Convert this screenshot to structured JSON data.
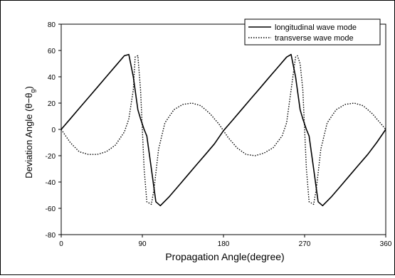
{
  "chart_data": {
    "type": "line",
    "xlabel": "Propagation Angle(degree)",
    "ylabel": "Deviation Angle (θ−θ",
    "ylabel_sub": "g",
    "ylabel_close": ")",
    "xlim": [
      0,
      360
    ],
    "ylim": [
      -80,
      80
    ],
    "xticks": [
      0,
      90,
      180,
      270,
      360
    ],
    "yticks": [
      80,
      60,
      40,
      20,
      0,
      -20,
      -40,
      -60,
      -80
    ],
    "grid": false,
    "legend_position": "top-right",
    "series": [
      {
        "name": "longitudinal wave mode",
        "style": "solid",
        "x": [
          0,
          10,
          20,
          30,
          40,
          50,
          60,
          70,
          75,
          80,
          85,
          88,
          90,
          92,
          95,
          100,
          105,
          110,
          120,
          130,
          140,
          150,
          160,
          170,
          180,
          190,
          200,
          210,
          220,
          230,
          240,
          250,
          255,
          260,
          265,
          268,
          270,
          272,
          275,
          280,
          285,
          290,
          300,
          310,
          320,
          330,
          340,
          350,
          360
        ],
        "y": [
          0,
          8,
          16,
          24,
          32,
          40,
          48,
          56,
          57,
          40,
          15,
          8,
          4,
          0,
          -5,
          -30,
          -55,
          -58,
          -51,
          -43,
          -35,
          -27,
          -19,
          -11,
          -1,
          7,
          15,
          23,
          31,
          39,
          47,
          55,
          57,
          40,
          15,
          8,
          4,
          0,
          -5,
          -30,
          -55,
          -58,
          -51,
          -43,
          -35,
          -27,
          -19,
          -10,
          0
        ]
      },
      {
        "name": "transverse wave mode",
        "style": "dotted",
        "x": [
          0,
          10,
          20,
          30,
          40,
          50,
          60,
          70,
          75,
          80,
          82,
          85,
          88,
          90,
          92,
          95,
          100,
          103,
          108,
          115,
          125,
          135,
          145,
          155,
          165,
          175,
          185,
          195,
          205,
          215,
          225,
          235,
          245,
          250,
          255,
          260,
          262,
          265,
          268,
          270,
          272,
          275,
          280,
          283,
          288,
          295,
          305,
          315,
          325,
          335,
          345,
          355,
          360
        ],
        "y": [
          0,
          -10,
          -17,
          -19,
          -19,
          -17,
          -12,
          -2,
          8,
          30,
          55,
          56,
          30,
          0,
          -30,
          -55,
          -57,
          -45,
          -15,
          5,
          15,
          19,
          20,
          18,
          12,
          4,
          -6,
          -14,
          -19,
          -20,
          -18,
          -14,
          -5,
          5,
          30,
          55,
          56,
          50,
          30,
          0,
          -30,
          -55,
          -57,
          -45,
          -15,
          5,
          15,
          19,
          20,
          18,
          12,
          4,
          0
        ]
      }
    ]
  }
}
